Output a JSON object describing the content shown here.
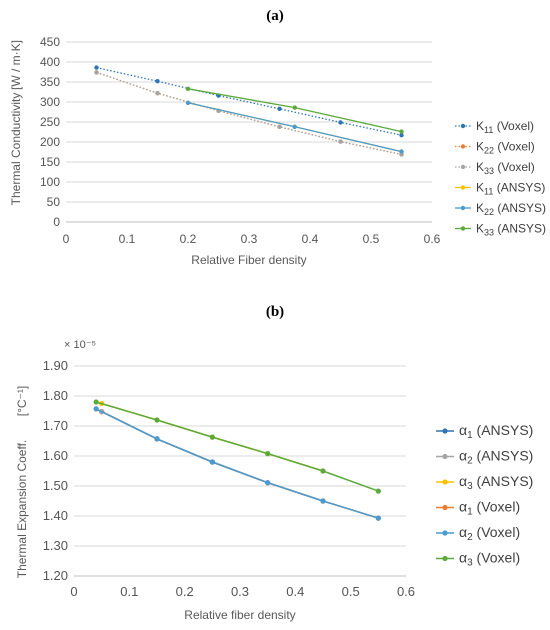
{
  "chart_data": [
    {
      "type": "line",
      "panel_label": "(a)",
      "xlabel": "Relative Fiber density",
      "ylabel": "Thermal Conductivity",
      "ylabel_unit": "[W / m·K]",
      "xlim": [
        0,
        0.6
      ],
      "ylim": [
        0,
        450
      ],
      "x_ticks": [
        "0",
        "0.1",
        "0.2",
        "0.3",
        "0.4",
        "0.5",
        "0.6"
      ],
      "y_ticks": [
        "0",
        "50",
        "100",
        "150",
        "200",
        "250",
        "300",
        "350",
        "400",
        "450"
      ],
      "grid": true,
      "legend_position": "right",
      "series": [
        {
          "name": "K11 (Voxel)",
          "sym": "K",
          "sub": "11",
          "suffix": " (Voxel)",
          "color": "#2E75B6",
          "dash": true,
          "x": [
            0.05,
            0.15,
            0.25,
            0.35,
            0.45,
            0.55
          ],
          "y": [
            386,
            352,
            316,
            283,
            249,
            217
          ]
        },
        {
          "name": "K22 (Voxel)",
          "sym": "K",
          "sub": "22",
          "suffix": " (Voxel)",
          "color": "#ED7D31",
          "dash": true,
          "x": [
            0.05,
            0.15,
            0.25,
            0.35,
            0.45,
            0.55
          ],
          "y": [
            374,
            322,
            278,
            238,
            201,
            169
          ]
        },
        {
          "name": "K33 (Voxel)",
          "sym": "K",
          "sub": "33",
          "suffix": " (Voxel)",
          "color": "#A5A5A5",
          "dash": true,
          "x": [
            0.05,
            0.15,
            0.25,
            0.35,
            0.45,
            0.55
          ],
          "y": [
            374,
            322,
            278,
            238,
            201,
            169
          ]
        },
        {
          "name": "K11 (ANSYS)",
          "sym": "K",
          "sub": "11",
          "suffix": " (ANSYS)",
          "color": "#FFC000",
          "dash": false,
          "x": [
            0.2,
            0.375,
            0.55
          ],
          "y": [
            298,
            238,
            176
          ]
        },
        {
          "name": "K22 (ANSYS)",
          "sym": "K",
          "sub": "22",
          "suffix": " (ANSYS)",
          "color": "#4A9BD0",
          "dash": false,
          "x": [
            0.2,
            0.375,
            0.55
          ],
          "y": [
            298,
            238,
            176
          ]
        },
        {
          "name": "K33 (ANSYS)",
          "sym": "K",
          "sub": "33",
          "suffix": " (ANSYS)",
          "color": "#5BAA3C",
          "dash": false,
          "x": [
            0.2,
            0.375,
            0.55
          ],
          "y": [
            333,
            286,
            226
          ]
        }
      ]
    },
    {
      "type": "line",
      "panel_label": "(b)",
      "xlabel": "Relative fiber density",
      "ylabel": "Thermal Expansion Coeff.",
      "ylabel_unit": "[°C⁻¹]",
      "scale_note": "× 10⁻⁵",
      "xlim": [
        0,
        0.6
      ],
      "ylim": [
        1.2,
        1.9
      ],
      "x_ticks": [
        "0",
        "0.1",
        "0.2",
        "0.3",
        "0.4",
        "0.5",
        "0.6"
      ],
      "y_ticks": [
        "1.20",
        "1.30",
        "1.40",
        "1.50",
        "1.60",
        "1.70",
        "1.80",
        "1.90"
      ],
      "grid": true,
      "legend_position": "right",
      "series": [
        {
          "name": "α1 (ANSYS)",
          "sym": "α",
          "sub": "1",
          "suffix": " (ANSYS)",
          "color": "#2E75B6",
          "dash": false,
          "x": [
            0.05,
            0.15,
            0.25,
            0.35,
            0.45
          ],
          "y": [
            1.748,
            1.657,
            1.58,
            1.511,
            1.45
          ]
        },
        {
          "name": "α2 (ANSYS)",
          "sym": "α",
          "sub": "2",
          "suffix": " (ANSYS)",
          "color": "#A5A5A5",
          "dash": false,
          "x": [
            0.05,
            0.15,
            0.25,
            0.35,
            0.45
          ],
          "y": [
            1.748,
            1.657,
            1.58,
            1.511,
            1.45
          ]
        },
        {
          "name": "α3 (ANSYS)",
          "sym": "α",
          "sub": "3",
          "suffix": " (ANSYS)",
          "color": "#FFC000",
          "dash": false,
          "x": [
            0.05,
            0.15,
            0.25,
            0.35,
            0.45
          ],
          "y": [
            1.775,
            1.72,
            1.663,
            1.608,
            1.55
          ]
        },
        {
          "name": "α1 (Voxel)",
          "sym": "α",
          "sub": "1",
          "suffix": " (Voxel)",
          "color": "#ED7D31",
          "dash": false,
          "x": [
            0.04,
            0.15,
            0.25,
            0.35,
            0.45,
            0.55
          ],
          "y": [
            1.757,
            1.657,
            1.58,
            1.511,
            1.45,
            1.393
          ]
        },
        {
          "name": "α2 (Voxel)",
          "sym": "α",
          "sub": "2",
          "suffix": " (Voxel)",
          "color": "#4A9BD0",
          "dash": false,
          "x": [
            0.04,
            0.15,
            0.25,
            0.35,
            0.45,
            0.55
          ],
          "y": [
            1.757,
            1.657,
            1.58,
            1.511,
            1.45,
            1.393
          ]
        },
        {
          "name": "α3 (Voxel)",
          "sym": "α",
          "sub": "3",
          "suffix": " (Voxel)",
          "color": "#5BAA3C",
          "dash": false,
          "x": [
            0.04,
            0.15,
            0.25,
            0.35,
            0.45,
            0.55
          ],
          "y": [
            1.78,
            1.72,
            1.663,
            1.608,
            1.55,
            1.483
          ]
        }
      ]
    }
  ]
}
